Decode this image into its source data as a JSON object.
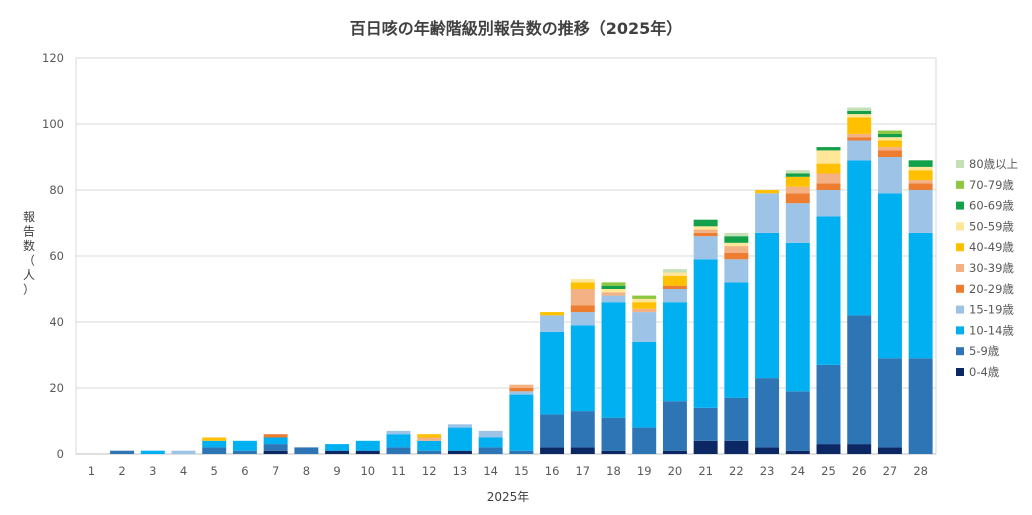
{
  "chart_data": {
    "type": "bar",
    "stacked": true,
    "title": "百日咳の年齢階級別報告数の推移（2025年）",
    "xlabel": "2025年",
    "ylabel_chars": [
      "報",
      "告",
      "数",
      "（",
      "人",
      "）"
    ],
    "ylim": [
      0,
      120
    ],
    "yticks": [
      0,
      20,
      40,
      60,
      80,
      100,
      120
    ],
    "grid": true,
    "legend_position": "right",
    "categories": [
      "1",
      "2",
      "3",
      "4",
      "5",
      "6",
      "7",
      "8",
      "9",
      "10",
      "11",
      "12",
      "13",
      "14",
      "15",
      "16",
      "17",
      "18",
      "19",
      "20",
      "21",
      "22",
      "23",
      "24",
      "25",
      "26",
      "27",
      "28"
    ],
    "series": [
      {
        "name": "0-4歳",
        "color": "#0b2864",
        "values": [
          0,
          0,
          0,
          0,
          0,
          0,
          1,
          0,
          1,
          1,
          0,
          0,
          1,
          0,
          0,
          2,
          2,
          1,
          0,
          1,
          4,
          4,
          2,
          1,
          3,
          3,
          2,
          0
        ]
      },
      {
        "name": "5-9歳",
        "color": "#2e75b6",
        "values": [
          0,
          1,
          0,
          0,
          2,
          1,
          2,
          2,
          0,
          0,
          2,
          1,
          0,
          2,
          1,
          10,
          11,
          10,
          8,
          15,
          10,
          13,
          21,
          18,
          24,
          39,
          27,
          29
        ]
      },
      {
        "name": "10-14歳",
        "color": "#00b0f0",
        "values": [
          0,
          0,
          1,
          0,
          2,
          3,
          2,
          0,
          2,
          3,
          4,
          3,
          7,
          3,
          17,
          25,
          26,
          35,
          26,
          30,
          45,
          35,
          44,
          45,
          45,
          47,
          50,
          38
        ]
      },
      {
        "name": "15-19歳",
        "color": "#9dc3e6",
        "values": [
          0,
          0,
          0,
          1,
          0,
          0,
          0,
          0,
          0,
          0,
          1,
          0,
          1,
          2,
          1,
          5,
          4,
          2,
          9,
          4,
          7,
          7,
          12,
          12,
          8,
          6,
          11,
          13
        ]
      },
      {
        "name": "20-29歳",
        "color": "#ed7d31",
        "values": [
          0,
          0,
          0,
          0,
          0,
          0,
          1,
          0,
          0,
          0,
          0,
          0,
          0,
          0,
          1,
          0,
          2,
          0,
          0,
          1,
          1,
          2,
          0,
          3,
          2,
          1,
          2,
          2
        ]
      },
      {
        "name": "30-39歳",
        "color": "#f4b183",
        "values": [
          0,
          0,
          0,
          0,
          0,
          0,
          0,
          0,
          0,
          0,
          0,
          1,
          0,
          0,
          1,
          0,
          5,
          1,
          1,
          0,
          1,
          2,
          0,
          2,
          3,
          1,
          1,
          1
        ]
      },
      {
        "name": "40-49歳",
        "color": "#ffc000",
        "values": [
          0,
          0,
          0,
          0,
          1,
          0,
          0,
          0,
          0,
          0,
          0,
          1,
          0,
          0,
          0,
          1,
          2,
          0,
          2,
          3,
          0,
          0,
          1,
          3,
          3,
          5,
          2,
          3
        ]
      },
      {
        "name": "50-59歳",
        "color": "#ffe699",
        "values": [
          0,
          0,
          0,
          0,
          0,
          0,
          0,
          0,
          0,
          0,
          0,
          0,
          0,
          0,
          0,
          0,
          1,
          1,
          1,
          1,
          1,
          1,
          0,
          0,
          4,
          1,
          1,
          1
        ]
      },
      {
        "name": "60-69歳",
        "color": "#13a04a",
        "values": [
          0,
          0,
          0,
          0,
          0,
          0,
          0,
          0,
          0,
          0,
          0,
          0,
          0,
          0,
          0,
          0,
          0,
          1,
          0,
          0,
          2,
          2,
          0,
          1,
          1,
          1,
          1,
          2
        ]
      },
      {
        "name": "70-79歳",
        "color": "#8dc63f",
        "values": [
          0,
          0,
          0,
          0,
          0,
          0,
          0,
          0,
          0,
          0,
          0,
          0,
          0,
          0,
          0,
          0,
          0,
          1,
          1,
          0,
          0,
          0,
          0,
          0,
          0,
          0,
          1,
          0
        ]
      },
      {
        "name": "80歳以上",
        "color": "#c5e0b4",
        "values": [
          0,
          0,
          0,
          0,
          0,
          0,
          0,
          0,
          0,
          0,
          0,
          0,
          0,
          0,
          0,
          0,
          0,
          0,
          0,
          1,
          0,
          1,
          0,
          1,
          0,
          1,
          0,
          0
        ]
      }
    ]
  }
}
